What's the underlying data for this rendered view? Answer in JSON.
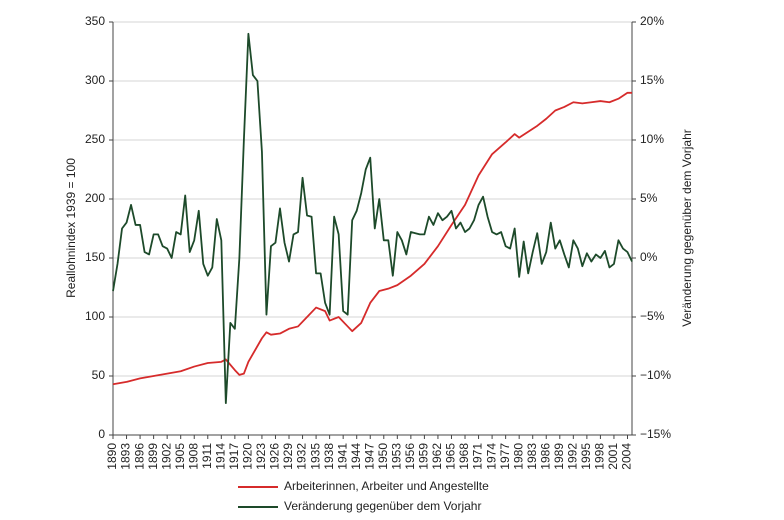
{
  "chart_data": {
    "type": "line",
    "y_label": "Reallohnindex 1939 = 100",
    "y2_label": "Veränderung gegenüber dem Vorjahr",
    "xlim": [
      1890,
      2005
    ],
    "xticks": [
      1890,
      1893,
      1896,
      1899,
      1902,
      1905,
      1908,
      1911,
      1914,
      1917,
      1920,
      1923,
      1926,
      1929,
      1932,
      1935,
      1938,
      1941,
      1944,
      1947,
      1950,
      1953,
      1956,
      1959,
      1962,
      1965,
      1968,
      1971,
      1974,
      1977,
      1980,
      1983,
      1986,
      1989,
      1992,
      1995,
      1998,
      2001,
      2004
    ],
    "ylim": [
      0,
      350
    ],
    "yticks": [
      0,
      50,
      100,
      150,
      200,
      250,
      300,
      350
    ],
    "y2lim": [
      -15,
      20
    ],
    "y2ticks": [
      {
        "value": -15,
        "label": "−15%"
      },
      {
        "value": -10,
        "label": "−10%"
      },
      {
        "value": -5,
        "label": "−5%"
      },
      {
        "value": 0,
        "label": "0%"
      },
      {
        "value": 5,
        "label": "5%"
      },
      {
        "value": 10,
        "label": "10%"
      },
      {
        "value": 15,
        "label": "15%"
      },
      {
        "value": 20,
        "label": "20%"
      }
    ],
    "grid": true,
    "series": [
      {
        "name": "Arbeiterinnen, Arbeiter und Angestellte",
        "color": "#d62b2b",
        "axis": "y",
        "x": [
          1890,
          1893,
          1896,
          1899,
          1902,
          1905,
          1908,
          1911,
          1914,
          1915,
          1917,
          1918,
          1919,
          1920,
          1923,
          1924,
          1925,
          1927,
          1929,
          1931,
          1933,
          1935,
          1937,
          1938,
          1940,
          1942,
          1943,
          1945,
          1947,
          1949,
          1951,
          1953,
          1956,
          1959,
          1962,
          1965,
          1968,
          1971,
          1974,
          1977,
          1979,
          1980,
          1982,
          1984,
          1986,
          1988,
          1990,
          1992,
          1994,
          1996,
          1998,
          2000,
          2002,
          2004,
          2005
        ],
        "values": [
          43,
          45,
          48,
          50,
          52,
          54,
          58,
          61,
          62,
          64,
          55,
          51,
          52,
          62,
          82,
          87,
          85,
          86,
          90,
          92,
          100,
          108,
          105,
          97,
          100,
          92,
          88,
          95,
          112,
          122,
          124,
          127,
          135,
          145,
          160,
          178,
          195,
          220,
          238,
          248,
          255,
          252,
          257,
          262,
          268,
          275,
          278,
          282,
          281,
          282,
          283,
          282,
          285,
          290,
          290
        ]
      },
      {
        "name": "Veränderung gegenüber dem Vorjahr",
        "color": "#1d4a2a",
        "axis": "y2",
        "x": [
          1890,
          1891,
          1892,
          1893,
          1894,
          1895,
          1896,
          1897,
          1898,
          1899,
          1900,
          1901,
          1902,
          1903,
          1904,
          1905,
          1906,
          1907,
          1908,
          1909,
          1910,
          1911,
          1912,
          1913,
          1914,
          1915,
          1916,
          1917,
          1918,
          1919,
          1920,
          1921,
          1922,
          1923,
          1924,
          1925,
          1926,
          1927,
          1928,
          1929,
          1930,
          1931,
          1932,
          1933,
          1934,
          1935,
          1936,
          1937,
          1938,
          1939,
          1940,
          1941,
          1942,
          1943,
          1944,
          1945,
          1946,
          1947,
          1948,
          1949,
          1950,
          1951,
          1952,
          1953,
          1954,
          1955,
          1956,
          1957,
          1958,
          1959,
          1960,
          1961,
          1962,
          1963,
          1964,
          1965,
          1966,
          1967,
          1968,
          1969,
          1970,
          1971,
          1972,
          1973,
          1974,
          1975,
          1976,
          1977,
          1978,
          1979,
          1980,
          1981,
          1982,
          1983,
          1984,
          1985,
          1986,
          1987,
          1988,
          1989,
          1990,
          1991,
          1992,
          1993,
          1994,
          1995,
          1996,
          1997,
          1998,
          1999,
          2000,
          2001,
          2002,
          2003,
          2004,
          2005
        ],
        "values": [
          -2.8,
          -0.5,
          2.5,
          3,
          4.5,
          2.8,
          2.8,
          0.5,
          0.3,
          2,
          2,
          1,
          0.8,
          0,
          2.2,
          2,
          5.3,
          0.5,
          1.5,
          4,
          -0.5,
          -1.5,
          -0.8,
          3.3,
          1.5,
          -12.3,
          -5.5,
          -6,
          0,
          10,
          19,
          15.5,
          15,
          9,
          -4.8,
          1,
          1.3,
          4.2,
          1.3,
          -0.3,
          2,
          2.2,
          6.8,
          3.6,
          3.5,
          -1.3,
          -1.3,
          -3.8,
          -4.8,
          3.5,
          2,
          -4.5,
          -4.8,
          3.2,
          4,
          5.5,
          7.5,
          8.5,
          2.5,
          5,
          1.5,
          1.5,
          -1.5,
          2.2,
          1.5,
          0.3,
          2.2,
          2.1,
          2,
          2,
          3.5,
          2.8,
          3.8,
          3.2,
          3.5,
          4,
          2.5,
          3,
          2.2,
          2.5,
          3.2,
          4.5,
          5.2,
          3.5,
          2.2,
          2,
          2.2,
          1,
          0.8,
          2.5,
          -1.6,
          1.4,
          -1.3,
          0.5,
          2.1,
          -0.5,
          0.5,
          3,
          0.8,
          1.5,
          0.3,
          -0.8,
          1.5,
          0.8,
          -0.7,
          0.4,
          -0.3,
          0.3,
          0,
          0.6,
          -0.8,
          -0.5,
          1.5,
          0.8,
          0.5,
          -0.3
        ]
      }
    ]
  }
}
